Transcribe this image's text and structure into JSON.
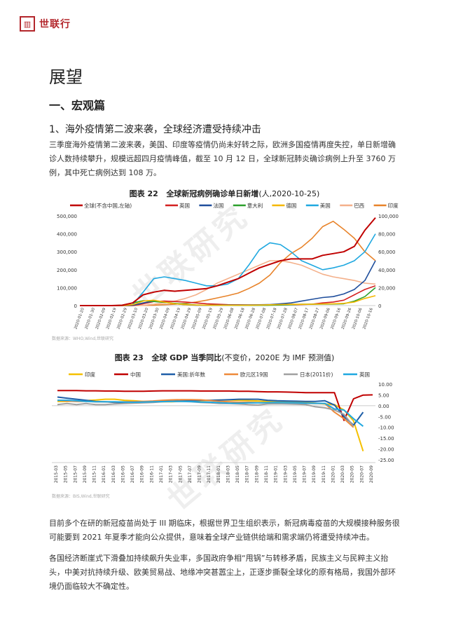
{
  "header": {
    "logo_glyph": "▥",
    "brand": "世联行"
  },
  "page_title": "展望",
  "section_heading": "一、宏观篇",
  "sub_heading": "1、海外疫情第二波来袭，全球经济遭受持续冲击",
  "paragraph1": "三季度海外疫情第二波来袭，美国、印度等疫情仍尚未好转之际，欧洲多国疫情再度失控，单日新增确诊人数持续攀升，规模远超四月疫情峰值，截至 10 月 12 日，全球新冠肺炎确诊病例上升至 3760 万例，其中死亡病例达到 108 万。",
  "paragraph2": "目前多个在研的新冠疫苗尚处于 III 期临床，根据世界卫生组织表示，新冠病毒疫苗的大规模接种服务很可能要到 2021 年夏季才能向公众提供，意味着全球产业链供给端和需求端仍将遭受持续冲击。",
  "paragraph3": "各国经济断崖式下滑叠加持续飙升失业率，多国政府争相“甩锅”与转移矛盾，民族主义与民粹主义抬头，中美对抗持续升级、欧美贸易战、地缘冲突甚嚣尘上，正逐步撕裂全球化的原有格局，我国外部环境仍面临较大不确定性。",
  "watermark": "世联研究",
  "colors": {
    "global": "#c00000",
    "uk": "#d42020",
    "france": "#1f4e9c",
    "italy": "#2ca02c",
    "germany": "#f5b800",
    "usa": "#1fa8e0",
    "brazil": "#f4b08a",
    "india": "#e8832a",
    "cn": "#c00000",
    "eu": "#ee8a3a",
    "jp": "#a0a0a0",
    "uk_gdp": "#1fa8e0",
    "usa_gdp": "#1f5fa8",
    "india_gdp": "#f5c000"
  },
  "figure22": {
    "title_prefix": "图表 22",
    "title_main": "全球新冠病例确诊单日新增",
    "title_suffix": "(人,2020-10-25)",
    "source": "数据来源：WHO,Wind,世联研究",
    "chart_data": {
      "type": "line",
      "legend": [
        "全球(不含中国,左轴)",
        "英国",
        "法国",
        "意大利",
        "德国",
        "美国",
        "巴西",
        "印度"
      ],
      "y_left_ticks": [
        "500,000",
        "400,000",
        "300,000",
        "200,000",
        "100,000",
        "0"
      ],
      "y_right_ticks": [
        "100,000",
        "80,000",
        "60,000",
        "40,000",
        "20,000",
        "0"
      ],
      "ylim_left": [
        0,
        500000
      ],
      "ylim_right": [
        0,
        100000
      ],
      "x_ticks": [
        "2020-01-20",
        "2020-01-30",
        "2020-02-09",
        "2020-02-19",
        "2020-02-29",
        "2020-03-10",
        "2020-03-20",
        "2020-03-30",
        "2020-04-09",
        "2020-04-19",
        "2020-04-29",
        "2020-05-09",
        "2020-05-19",
        "2020-05-29",
        "2020-06-08",
        "2020-06-18",
        "2020-06-28",
        "2020-07-08",
        "2020-07-18",
        "2020-07-28",
        "2020-08-07",
        "2020-08-17",
        "2020-08-27",
        "2020-09-06",
        "2020-09-16",
        "2020-09-26",
        "2020-10-06",
        "2020-10-16"
      ],
      "series": [
        {
          "name": "全球(不含中国,左轴)",
          "axis": "left",
          "values": [
            0,
            0,
            0,
            0,
            2000,
            15000,
            60000,
            75000,
            85000,
            80000,
            85000,
            90000,
            95000,
            110000,
            130000,
            150000,
            180000,
            210000,
            230000,
            250000,
            260000,
            260000,
            260000,
            280000,
            290000,
            300000,
            330000,
            420000,
            490000
          ]
        },
        {
          "name": "英国",
          "axis": "right",
          "values": [
            0,
            0,
            0,
            0,
            0,
            100,
            2000,
            4500,
            5000,
            4500,
            4000,
            3000,
            2000,
            1500,
            1000,
            900,
            800,
            700,
            700,
            900,
            1000,
            1200,
            1500,
            3000,
            4000,
            6000,
            12000,
            18000,
            22000
          ]
        },
        {
          "name": "法国",
          "axis": "right",
          "values": [
            0,
            0,
            0,
            0,
            0,
            300,
            3000,
            5000,
            4000,
            2000,
            1000,
            500,
            300,
            500,
            600,
            700,
            800,
            900,
            1200,
            2000,
            3000,
            5000,
            7000,
            9000,
            10000,
            13000,
            18000,
            28000,
            50000
          ]
        },
        {
          "name": "意大利",
          "axis": "right",
          "values": [
            0,
            0,
            0,
            0,
            500,
            3000,
            5500,
            4500,
            3500,
            2500,
            1500,
            800,
            500,
            300,
            300,
            250,
            250,
            300,
            400,
            600,
            1000,
            1500,
            1500,
            1600,
            1700,
            2000,
            5000,
            10000,
            20000
          ]
        },
        {
          "name": "德国",
          "axis": "right",
          "values": [
            0,
            0,
            0,
            0,
            0,
            1000,
            5000,
            6000,
            4000,
            2000,
            1000,
            600,
            500,
            400,
            400,
            500,
            500,
            600,
            900,
            1200,
            1500,
            1400,
            1500,
            1800,
            2000,
            2500,
            4000,
            8000,
            11000
          ]
        },
        {
          "name": "美国",
          "axis": "right",
          "values": [
            0,
            0,
            0,
            0,
            0,
            1000,
            15000,
            30000,
            32000,
            30000,
            28000,
            25000,
            22000,
            22000,
            24000,
            30000,
            45000,
            62000,
            70000,
            68000,
            60000,
            50000,
            45000,
            40000,
            42000,
            45000,
            50000,
            60000,
            80000
          ]
        },
        {
          "name": "巴西",
          "axis": "right",
          "values": [
            0,
            0,
            0,
            0,
            0,
            0,
            300,
            1500,
            3000,
            5000,
            8000,
            12000,
            18000,
            25000,
            30000,
            35000,
            40000,
            45000,
            50000,
            50000,
            48000,
            45000,
            40000,
            35000,
            32000,
            30000,
            28000,
            25000,
            24000
          ]
        },
        {
          "name": "印度",
          "axis": "right",
          "values": [
            0,
            0,
            0,
            0,
            0,
            50,
            200,
            500,
            1000,
            1500,
            2500,
            4000,
            6000,
            8500,
            11000,
            14000,
            19000,
            25000,
            34000,
            48000,
            58000,
            65000,
            75000,
            88000,
            94000,
            85000,
            75000,
            60000,
            50000
          ]
        }
      ]
    }
  },
  "figure23": {
    "title_prefix": "图表 23",
    "title_main": "全球 GDP 当季同比",
    "title_suffix": "(不变价，2020E 为 IMF 预测值)",
    "source": "数据来源：BIS,Wind,世联研究",
    "chart_data": {
      "type": "line",
      "legend": [
        "印度",
        "中国",
        "美国:折年数",
        "欧元区19国",
        "日本(2011价)",
        "英国"
      ],
      "y_ticks": [
        "10.00",
        "5.00",
        "0.00",
        "-5.00",
        "-10.00",
        "-15.00",
        "-20.00",
        "-25.00"
      ],
      "ylim": [
        -25,
        10
      ],
      "x_ticks": [
        "2015-03",
        "2015-05",
        "2015-07",
        "2015-09",
        "2015-11",
        "2016-01",
        "2016-03",
        "2016-05",
        "2016-07",
        "2016-09",
        "2016-11",
        "2017-01",
        "2017-03",
        "2017-05",
        "2017-07",
        "2017-09",
        "2017-11",
        "2018-01",
        "2018-03",
        "2018-05",
        "2018-07",
        "2018-09",
        "2018-11",
        "2019-01",
        "2019-03",
        "2019-05",
        "2019-07",
        "2019-09",
        "2019-11",
        "2020-01",
        "2020-03",
        "2020-05",
        "2020-07",
        "2020-09"
      ],
      "series": [
        {
          "name": "印度",
          "values": [
            2.0,
            2.0,
            2.2,
            2.4,
            2.6,
            3.0,
            3.0,
            2.5,
            2.3,
            2.0,
            2.0,
            1.8,
            1.8,
            2.0,
            2.2,
            2.3,
            2.5,
            2.6,
            2.6,
            2.5,
            2.4,
            2.2,
            2.0,
            2.0,
            2.0,
            1.8,
            1.5,
            1.2,
            0.8,
            0.5,
            -2.0,
            -7.0,
            -21.0,
            null
          ]
        },
        {
          "name": "中国",
          "values": [
            7.0,
            7.0,
            7.0,
            6.9,
            6.9,
            6.8,
            6.8,
            6.7,
            6.7,
            6.7,
            6.8,
            6.9,
            6.9,
            6.9,
            6.9,
            6.8,
            6.8,
            6.8,
            6.8,
            6.7,
            6.7,
            6.5,
            6.4,
            6.4,
            6.3,
            6.2,
            6.0,
            6.0,
            6.0,
            6.0,
            -6.8,
            3.2,
            4.9,
            5.0
          ]
        },
        {
          "name": "美国:折年数",
          "values": [
            4.0,
            3.5,
            3.0,
            2.5,
            2.0,
            1.8,
            1.5,
            1.3,
            1.5,
            1.6,
            1.8,
            2.0,
            2.2,
            2.3,
            2.3,
            2.5,
            2.5,
            2.6,
            2.8,
            3.0,
            3.0,
            3.0,
            2.5,
            2.3,
            2.2,
            2.1,
            2.0,
            2.0,
            2.3,
            0.3,
            -5.0,
            -9.0,
            -3.0,
            null
          ]
        },
        {
          "name": "欧元区19国",
          "values": [
            2.5,
            2.2,
            2.0,
            2.0,
            1.8,
            1.8,
            1.7,
            1.8,
            1.9,
            2.0,
            2.2,
            2.5,
            2.7,
            2.8,
            2.8,
            2.7,
            2.4,
            2.0,
            1.8,
            1.6,
            1.6,
            1.4,
            1.3,
            1.2,
            1.2,
            1.1,
            1.1,
            1.0,
            1.0,
            -3.0,
            -6.0,
            -10.0,
            null,
            null
          ]
        },
        {
          "name": "日本(2011价)",
          "values": [
            0.5,
            1.0,
            0.5,
            1.0,
            0.5,
            0.5,
            0.8,
            1.0,
            1.2,
            1.3,
            1.5,
            1.8,
            2.0,
            2.0,
            1.8,
            1.5,
            1.3,
            1.0,
            1.0,
            0.8,
            0.5,
            0.3,
            0.8,
            0.9,
            0.8,
            0.7,
            0.5,
            -0.5,
            -1.0,
            -2.0,
            -4.0,
            -9.5,
            null,
            null
          ]
        },
        {
          "name": "英国",
          "values": [
            2.5,
            2.5,
            2.3,
            2.0,
            1.8,
            1.8,
            1.8,
            1.7,
            1.6,
            1.7,
            1.8,
            1.9,
            2.0,
            2.0,
            1.9,
            1.7,
            1.6,
            1.4,
            1.2,
            1.2,
            1.3,
            1.3,
            1.4,
            1.5,
            1.4,
            1.3,
            1.2,
            1.1,
            1.1,
            -1.5,
            -2.0,
            -6.0,
            -9.5,
            null
          ]
        }
      ]
    }
  }
}
